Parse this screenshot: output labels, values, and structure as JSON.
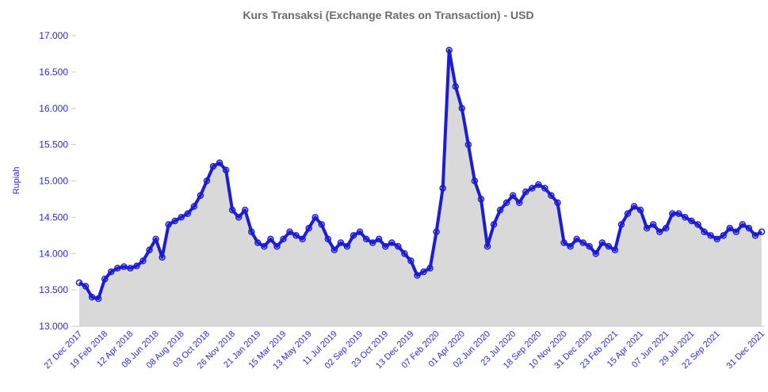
{
  "chart_data": {
    "type": "area",
    "title": "Kurs Transaksi (Exchange Rates on Transaction) - USD",
    "y_label": "Rupiah",
    "color": "#1c1cd8",
    "fill": "#d9d9d9",
    "grid": false,
    "categories": [
      "27 Dec 2017",
      null,
      null,
      null,
      "19 Feb 2018",
      null,
      null,
      null,
      "12 Apr 2018",
      null,
      null,
      null,
      "08 Jun 2018",
      null,
      null,
      null,
      "08 Aug 2018",
      null,
      null,
      null,
      "03 Oct 2018",
      null,
      null,
      null,
      "26 Nov 2018",
      null,
      null,
      null,
      "21 Jan 2019",
      null,
      null,
      null,
      "15 Mar 2019",
      null,
      null,
      null,
      "13 May 2019",
      null,
      null,
      null,
      "11 Jul 2019",
      null,
      null,
      null,
      "02 Sep 2019",
      null,
      null,
      null,
      "23 Oct 2019",
      null,
      null,
      null,
      "13 Dec 2019",
      null,
      null,
      null,
      "07 Feb 2020",
      null,
      null,
      null,
      "01 Apr 2020",
      null,
      null,
      null,
      "02 Jun 2020",
      null,
      null,
      null,
      "23 Jul 2020",
      null,
      null,
      null,
      "18 Sep 2020",
      null,
      null,
      null,
      "10 Nov 2020",
      null,
      null,
      null,
      "31 Dec 2020",
      null,
      null,
      null,
      "23 Feb 2021",
      null,
      null,
      null,
      "15 Apr 2021",
      null,
      null,
      null,
      "07 Jun 2021",
      null,
      null,
      null,
      "29 Jul 2021",
      null,
      null,
      null,
      "22 Sep 2021",
      null,
      null,
      null,
      null,
      null,
      null,
      "31 Dec 2021"
    ],
    "values": [
      13600,
      13550,
      13400,
      13380,
      13650,
      13750,
      13800,
      13820,
      13800,
      13830,
      13900,
      14050,
      14200,
      13950,
      14400,
      14450,
      14500,
      14550,
      14650,
      14800,
      15000,
      15200,
      15250,
      15150,
      14600,
      14500,
      14600,
      14300,
      14150,
      14100,
      14200,
      14100,
      14200,
      14300,
      14250,
      14200,
      14350,
      14500,
      14400,
      14200,
      14050,
      14150,
      14100,
      14250,
      14300,
      14200,
      14150,
      14200,
      14100,
      14150,
      14100,
      14000,
      13900,
      13700,
      13750,
      13800,
      14300,
      14900,
      16800,
      16300,
      16000,
      15500,
      15000,
      14750,
      14100,
      14400,
      14600,
      14700,
      14800,
      14700,
      14850,
      14900,
      14950,
      14900,
      14800,
      14700,
      14150,
      14100,
      14200,
      14150,
      14100,
      14000,
      14150,
      14100,
      14050,
      14400,
      14550,
      14650,
      14600,
      14350,
      14400,
      14300,
      14350,
      14550,
      14550,
      14500,
      14450,
      14400,
      14300,
      14250,
      14200,
      14250,
      14350,
      14300,
      14400,
      14350,
      14250,
      14300
    ],
    "ylim": [
      13000,
      17000
    ],
    "yticks": [
      {
        "value": 13000,
        "label": "13.000"
      },
      {
        "value": 13500,
        "label": "13.500"
      },
      {
        "value": 14000,
        "label": "14.000"
      },
      {
        "value": 14500,
        "label": "14.500"
      },
      {
        "value": 15000,
        "label": "15.000"
      },
      {
        "value": 15500,
        "label": "15.500"
      },
      {
        "value": 16000,
        "label": "16.000"
      },
      {
        "value": 16500,
        "label": "16.500"
      },
      {
        "value": 17000,
        "label": "17.000"
      }
    ]
  }
}
